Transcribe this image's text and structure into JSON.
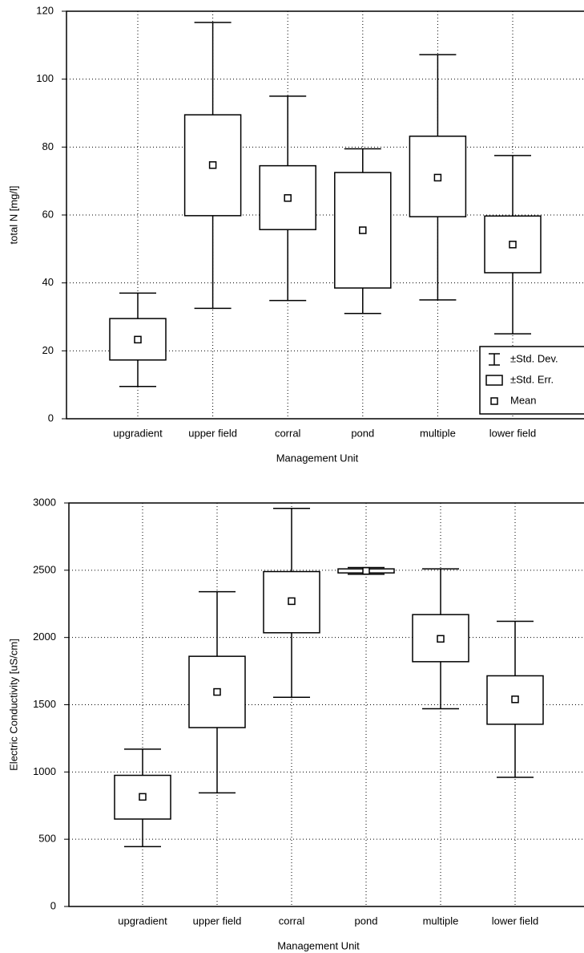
{
  "chart_data": [
    {
      "type": "box",
      "y_label": "total N [mg/l]",
      "x_label": "Management Unit",
      "categories": [
        "upgradient",
        "upper field",
        "corral",
        "pond",
        "multiple",
        "lower field"
      ],
      "mean": [
        23.3,
        74.7,
        65,
        55.5,
        71,
        51.3
      ],
      "se_low": [
        17.3,
        59.8,
        55.7,
        38.5,
        59.5,
        43
      ],
      "se_high": [
        29.5,
        89.5,
        74.5,
        72.5,
        83.2,
        59.7
      ],
      "sd_low": [
        9.5,
        32.5,
        34.8,
        31,
        35,
        25
      ],
      "sd_high": [
        37,
        116.7,
        95,
        79.5,
        107.2,
        77.5
      ],
      "ylim": [
        0,
        120
      ],
      "yticks": [
        0,
        20,
        40,
        60,
        80,
        100,
        120
      ],
      "grid": true,
      "legend_labels": [
        "±Std. Dev.",
        "±Std. Err.",
        "Mean"
      ],
      "legend": "lower right"
    },
    {
      "type": "box",
      "y_label": "Electric Conductivity [uS/cm]",
      "x_label": "Management Unit",
      "categories": [
        "upgradient",
        "upper field",
        "corral",
        "pond",
        "multiple",
        "lower field"
      ],
      "mean": [
        815,
        1595,
        2270,
        2495,
        1990,
        1540
      ],
      "se_low": [
        650,
        1330,
        2035,
        2480,
        1820,
        1355
      ],
      "se_high": [
        975,
        1860,
        2490,
        2510,
        2170,
        1715
      ],
      "sd_low": [
        445,
        845,
        1555,
        2470,
        1470,
        960
      ],
      "sd_high": [
        1170,
        2340,
        2960,
        2520,
        2510,
        2120
      ],
      "ylim": [
        0,
        3000
      ],
      "yticks": [
        0,
        500,
        1000,
        1500,
        2000,
        2500,
        3000
      ],
      "grid": true
    }
  ]
}
